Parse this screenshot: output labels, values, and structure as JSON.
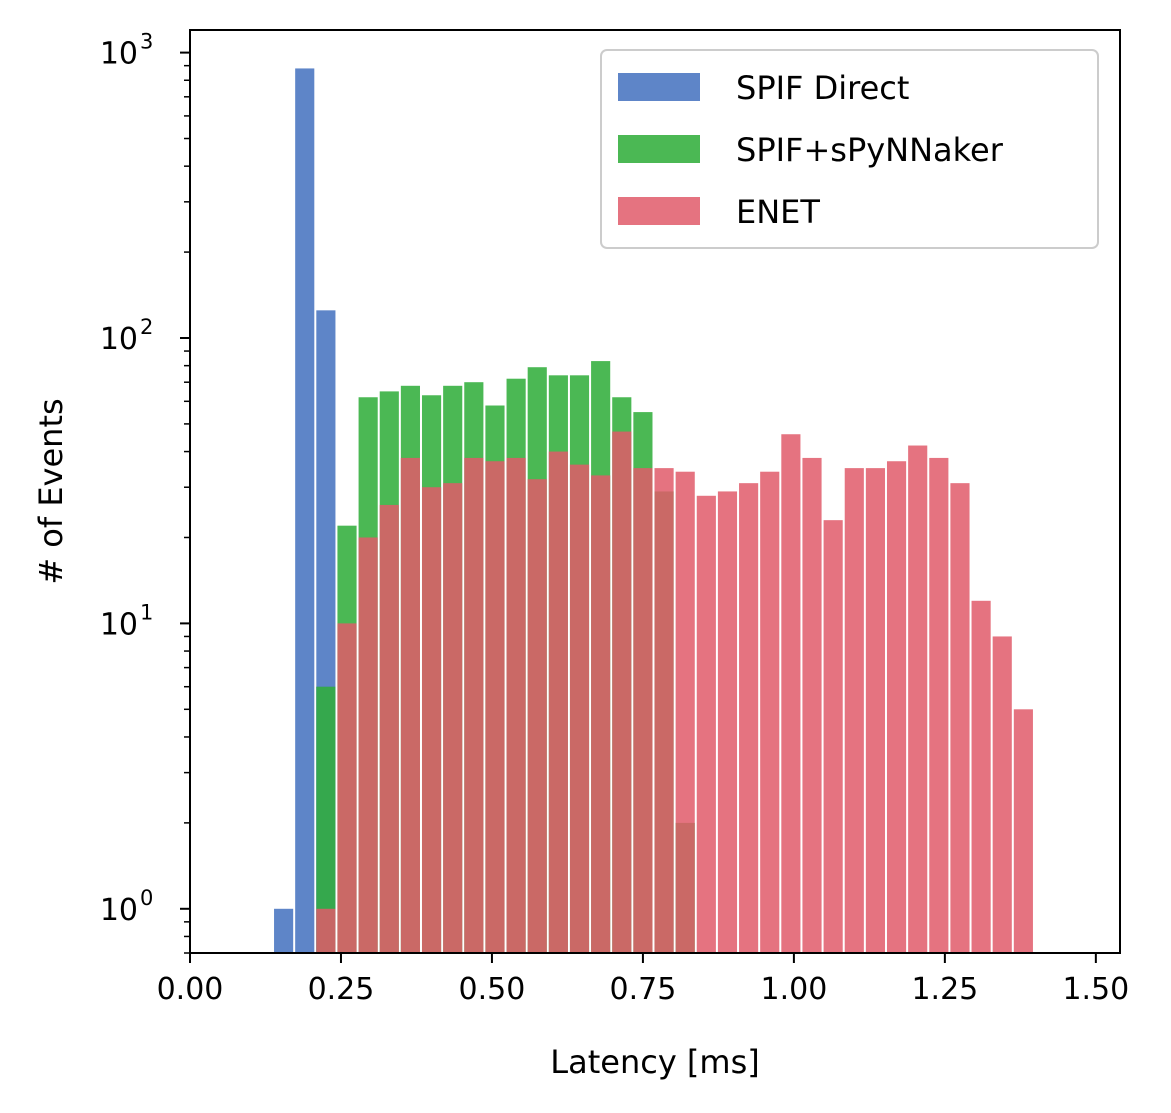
{
  "chart_data": {
    "type": "bar",
    "xlabel": "Latency [ms]",
    "ylabel": "# of Events",
    "xlim": [
      0.0,
      1.54
    ],
    "ylim": [
      0.7,
      1200
    ],
    "yscale": "log",
    "bin_width": 0.035,
    "xticks": [
      "0.00",
      "0.25",
      "0.50",
      "0.75",
      "1.00",
      "1.25",
      "1.50"
    ],
    "xtick_values": [
      0.0,
      0.25,
      0.5,
      0.75,
      1.0,
      1.25,
      1.5
    ],
    "yticks": [
      {
        "value": 1,
        "base": "10",
        "exp": "0"
      },
      {
        "value": 10,
        "base": "10",
        "exp": "1"
      },
      {
        "value": 100,
        "base": "10",
        "exp": "2"
      },
      {
        "value": 1000,
        "base": "10",
        "exp": "3"
      }
    ],
    "legend_position": "top-right",
    "series": [
      {
        "name": "SPIF Direct",
        "color": "#4c78c2",
        "bins": [
          {
            "x": 0.155,
            "count": 1
          },
          {
            "x": 0.19,
            "count": 880
          },
          {
            "x": 0.225,
            "count": 125
          },
          {
            "x": 0.225,
            "count": 6
          }
        ]
      },
      {
        "name": "SPIF+sPyNNaker",
        "color": "#32ae3c",
        "bins": [
          {
            "x": 0.225,
            "count": 6
          },
          {
            "x": 0.26,
            "count": 22
          },
          {
            "x": 0.295,
            "count": 62
          },
          {
            "x": 0.33,
            "count": 65
          },
          {
            "x": 0.365,
            "count": 68
          },
          {
            "x": 0.4,
            "count": 63
          },
          {
            "x": 0.435,
            "count": 68
          },
          {
            "x": 0.47,
            "count": 70
          },
          {
            "x": 0.505,
            "count": 58
          },
          {
            "x": 0.54,
            "count": 72
          },
          {
            "x": 0.575,
            "count": 79
          },
          {
            "x": 0.61,
            "count": 74
          },
          {
            "x": 0.645,
            "count": 74
          },
          {
            "x": 0.68,
            "count": 83
          },
          {
            "x": 0.715,
            "count": 62
          },
          {
            "x": 0.75,
            "count": 55
          },
          {
            "x": 0.785,
            "count": 29
          },
          {
            "x": 0.82,
            "count": 2
          }
        ]
      },
      {
        "name": "ENET",
        "color": "#e05a6a",
        "bins": [
          {
            "x": 0.225,
            "count": 1
          },
          {
            "x": 0.26,
            "count": 10
          },
          {
            "x": 0.295,
            "count": 20
          },
          {
            "x": 0.33,
            "count": 26
          },
          {
            "x": 0.365,
            "count": 38
          },
          {
            "x": 0.4,
            "count": 30
          },
          {
            "x": 0.435,
            "count": 31
          },
          {
            "x": 0.47,
            "count": 38
          },
          {
            "x": 0.505,
            "count": 37
          },
          {
            "x": 0.54,
            "count": 38
          },
          {
            "x": 0.575,
            "count": 32
          },
          {
            "x": 0.61,
            "count": 40
          },
          {
            "x": 0.645,
            "count": 36
          },
          {
            "x": 0.68,
            "count": 33
          },
          {
            "x": 0.715,
            "count": 47
          },
          {
            "x": 0.75,
            "count": 35
          },
          {
            "x": 0.785,
            "count": 35
          },
          {
            "x": 0.82,
            "count": 34
          },
          {
            "x": 0.855,
            "count": 28
          },
          {
            "x": 0.89,
            "count": 29
          },
          {
            "x": 0.925,
            "count": 31
          },
          {
            "x": 0.96,
            "count": 34
          },
          {
            "x": 0.995,
            "count": 46
          },
          {
            "x": 1.03,
            "count": 38
          },
          {
            "x": 1.065,
            "count": 23
          },
          {
            "x": 1.1,
            "count": 35
          },
          {
            "x": 1.135,
            "count": 35
          },
          {
            "x": 1.17,
            "count": 37
          },
          {
            "x": 1.205,
            "count": 42
          },
          {
            "x": 1.24,
            "count": 38
          },
          {
            "x": 1.275,
            "count": 31
          },
          {
            "x": 1.31,
            "count": 12
          },
          {
            "x": 1.345,
            "count": 9
          },
          {
            "x": 1.38,
            "count": 5
          }
        ]
      }
    ]
  }
}
